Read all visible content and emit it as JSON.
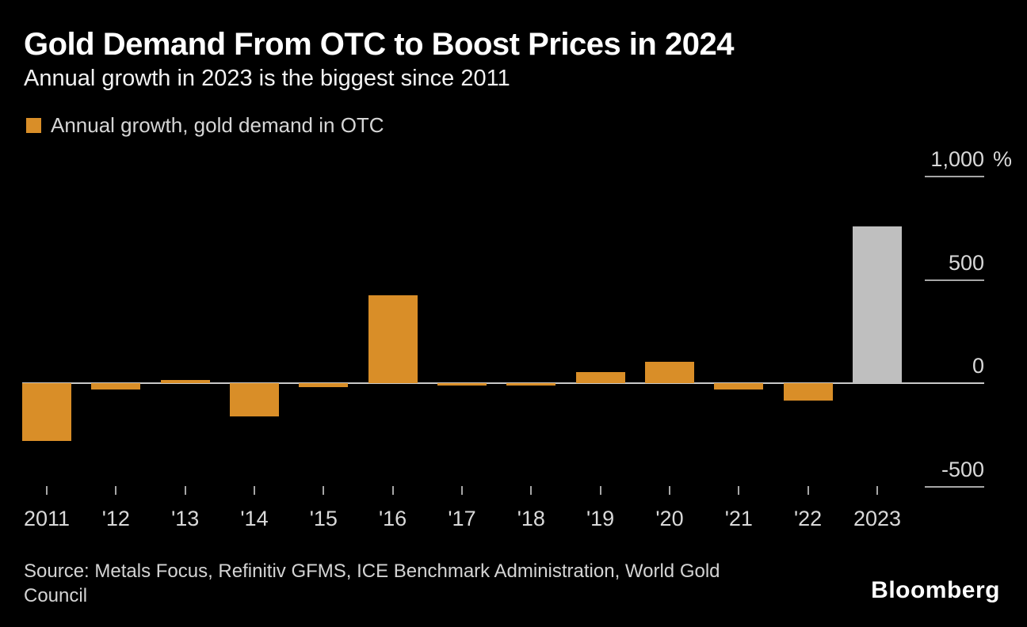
{
  "header": {
    "title": "Gold Demand From OTC to Boost Prices in 2024",
    "subtitle": "Annual growth in 2023 is the biggest since 2011"
  },
  "legend": {
    "label": "Annual growth, gold demand in OTC",
    "swatch_color": "#D98E28"
  },
  "chart_data": {
    "type": "bar",
    "title": "Gold Demand From OTC to Boost Prices in 2024",
    "subtitle": "Annual growth in 2023 is the biggest since 2011",
    "legend": "Annual growth, gold demand in OTC",
    "categories": [
      "2011",
      "'12",
      "'13",
      "'14",
      "'15",
      "'16",
      "'17",
      "'18",
      "'19",
      "'20",
      "'21",
      "'22",
      "2023"
    ],
    "values": [
      -280,
      -30,
      15,
      -160,
      -20,
      425,
      -10,
      -10,
      55,
      105,
      -30,
      -85,
      760
    ],
    "highlight_index": 12,
    "colors": {
      "default": "#D98E28",
      "highlight": "#BFBFBF"
    },
    "xlabel": "",
    "ylabel": "%",
    "unit": "%",
    "ylim": [
      -500,
      1000
    ],
    "yticks": [
      1000,
      500,
      0,
      -500
    ],
    "ytick_labels": [
      "1,000",
      "500",
      "0",
      "-500"
    ],
    "axis_side": "right",
    "legend_position": "top-left",
    "grid": false
  },
  "source": {
    "lines": [
      "Source: Metals Focus, Refinitiv GFMS, ICE Benchmark Administration, World Gold",
      "Council"
    ]
  },
  "branding": {
    "logo": "Bloomberg"
  }
}
